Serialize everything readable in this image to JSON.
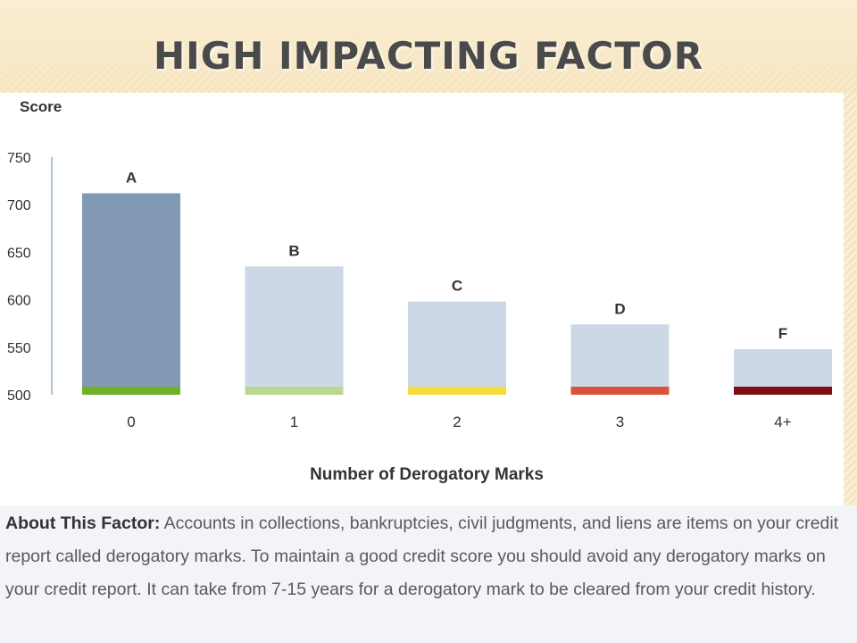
{
  "slide": {
    "title": "HIGH IMPACTING FACTOR"
  },
  "chart_data": {
    "type": "bar",
    "ylabel": "Score",
    "xlabel": "Number of Derogatory Marks",
    "ylim": [
      500,
      750
    ],
    "yticks": [
      750,
      700,
      650,
      600,
      550,
      500
    ],
    "categories": [
      "0",
      "1",
      "2",
      "3",
      "4+"
    ],
    "values": [
      712,
      635,
      598,
      574,
      548
    ],
    "bar_labels": [
      "A",
      "B",
      "C",
      "D",
      "F"
    ],
    "bar_colors": [
      "#8199b2",
      "#cdd8e6",
      "#cdd8e6",
      "#cdd8e6",
      "#cdd8e6"
    ],
    "base_colors": [
      "#6fb12a",
      "#b9d88d",
      "#f5dc3a",
      "#d9523a",
      "#7b0f12"
    ],
    "grid": false
  },
  "about": {
    "label": "About This Factor:",
    "text": " Accounts in collections, bankruptcies, civil judgments, and liens are items on your credit report called derogatory marks. To maintain a good credit score you should avoid any derogatory marks on your credit report. It can take from 7-15 years for a derogatory mark to be cleared from your credit history."
  }
}
